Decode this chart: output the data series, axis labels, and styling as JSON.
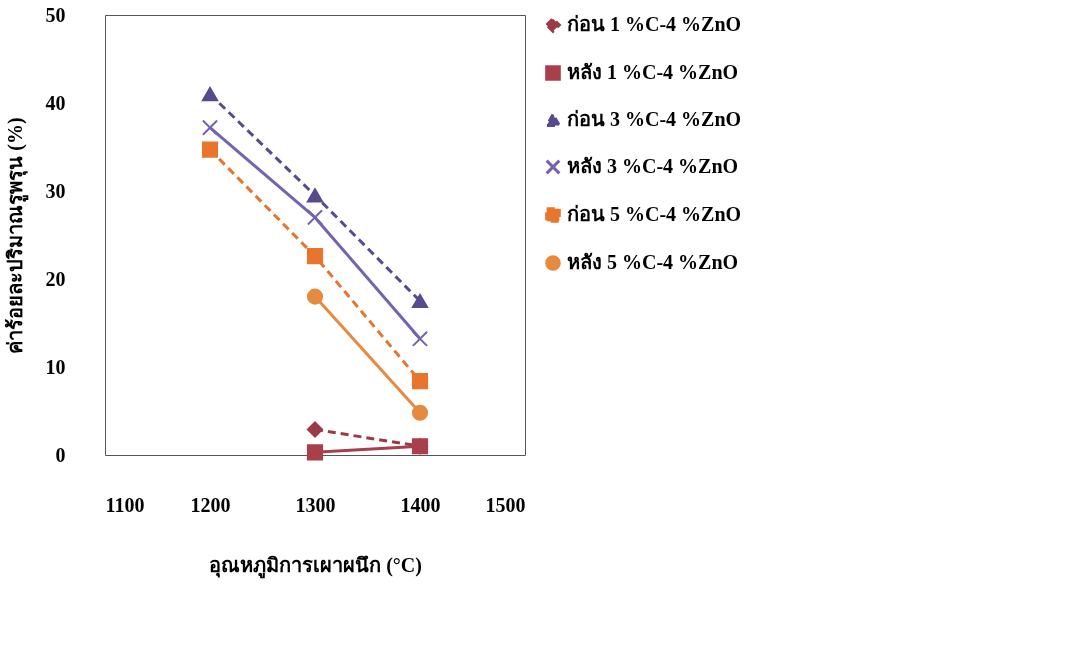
{
  "chart_data": {
    "type": "line",
    "xlabel": "อุณหภูมิการเผาผนึก (°C)",
    "ylabel": "ค่าร้อยละปริมาณรูพรุน (%)",
    "xlim": [
      1100,
      1500
    ],
    "xticks": [
      1100,
      1200,
      1300,
      1400,
      1500
    ],
    "ylim": [
      0,
      50
    ],
    "yticks": [
      0,
      10,
      20,
      30,
      40,
      50
    ],
    "grid": false,
    "legend": "right",
    "series": [
      {
        "name": "ก่อน 1 %C-4 %ZnO",
        "color": "#9b3b48",
        "x": [
          1300,
          1400
        ],
        "values": [
          2.9,
          1.0
        ],
        "marker": "diamond",
        "line_style": "dashed"
      },
      {
        "name": "หลัง 1 %C-4 %ZnO",
        "color": "#a8404c",
        "x": [
          1300,
          1400
        ],
        "values": [
          0.3,
          1.0
        ],
        "marker": "square",
        "line_style": "solid"
      },
      {
        "name": "ก่อน 3 %C-4 %ZnO",
        "color": "#584a8c",
        "x": [
          1200,
          1300,
          1400
        ],
        "values": [
          41,
          29.5,
          17.5
        ],
        "marker": "triangle",
        "line_style": "dashed"
      },
      {
        "name": "หลัง 3 %C-4 %ZnO",
        "color": "#7663b0",
        "x": [
          1200,
          1300,
          1400
        ],
        "values": [
          37.2,
          27,
          13.2
        ],
        "marker": "cross",
        "line_style": "solid"
      },
      {
        "name": "ก่อน 5 %C-4 %ZnO",
        "color": "#e8752e",
        "x": [
          1200,
          1300,
          1400
        ],
        "values": [
          34.7,
          22.6,
          8.4
        ],
        "marker": "square",
        "line_style": "dashed"
      },
      {
        "name": "หลัง 5 %C-4 %ZnO",
        "color": "#e58a3e",
        "x": [
          1300,
          1400
        ],
        "values": [
          18,
          4.8
        ],
        "marker": "circle",
        "line_style": "solid"
      }
    ]
  }
}
